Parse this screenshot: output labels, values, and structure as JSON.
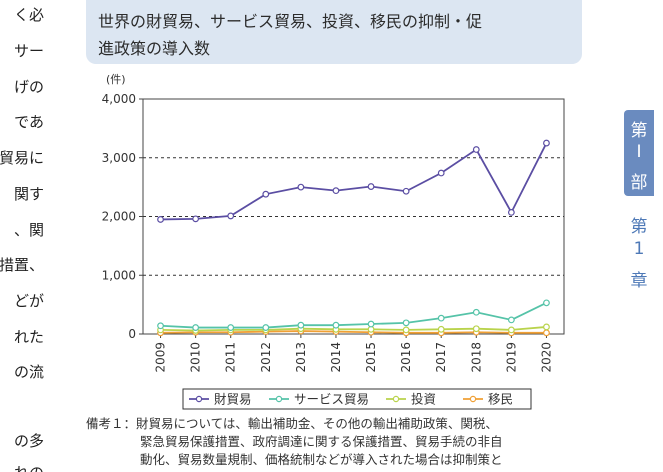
{
  "left_text_lines": [
    "く必",
    "サー",
    "げの",
    "であ",
    "貿易に",
    "関す",
    "、関",
    "措置、",
    "どが",
    "れた",
    "の流",
    "",
    "の多",
    "れの"
  ],
  "title": {
    "line1": "世界の財貿易、サービス貿易、投資、移民の抑制・促",
    "line2": "進政策の導入数"
  },
  "side_tab": {
    "chars": [
      "第",
      "I",
      "部"
    ],
    "color": "#6a8bbf"
  },
  "chapter": {
    "chars": [
      "第",
      "1",
      "章"
    ],
    "color": "#4e79b7"
  },
  "chart_data": {
    "type": "line",
    "unit_label": "(件)",
    "categories": [
      "2009",
      "2010",
      "2011",
      "2012",
      "2013",
      "2014",
      "2015",
      "2016",
      "2017",
      "2018",
      "2019",
      "2020"
    ],
    "ylim": [
      0,
      4000
    ],
    "yticks": [
      0,
      1000,
      2000,
      3000,
      4000
    ],
    "ytick_labels": [
      "0",
      "1,000",
      "2,000",
      "3,000",
      "4,000"
    ],
    "grid": "dashed horizontal at 1000, 2000, 3000",
    "legend_position": "bottom-center",
    "series": [
      {
        "name": "財貿易",
        "color": "#5b4ea3",
        "values": [
          1950,
          1960,
          2010,
          2380,
          2500,
          2440,
          2510,
          2430,
          2740,
          3140,
          2070,
          3250
        ]
      },
      {
        "name": "サービス貿易",
        "color": "#55c3a8",
        "values": [
          140,
          110,
          110,
          110,
          150,
          150,
          170,
          190,
          270,
          370,
          240,
          530
        ]
      },
      {
        "name": "投資",
        "color": "#b9d34c",
        "values": [
          70,
          60,
          70,
          70,
          90,
          80,
          80,
          70,
          80,
          90,
          70,
          120
        ]
      },
      {
        "name": "移民",
        "color": "#f0a035",
        "values": [
          20,
          30,
          30,
          40,
          50,
          40,
          30,
          20,
          20,
          30,
          20,
          20
        ]
      }
    ]
  },
  "note": {
    "line1": "備考１：財貿易については、輸出補助金、その他の輸出補助政策、関税、",
    "line2": "緊急貿易保護措置、政府調達に関する保護措置、貿易手続の非自",
    "line3": "動化、貿易数量規制、価格統制などが導入された場合は抑制策と"
  }
}
